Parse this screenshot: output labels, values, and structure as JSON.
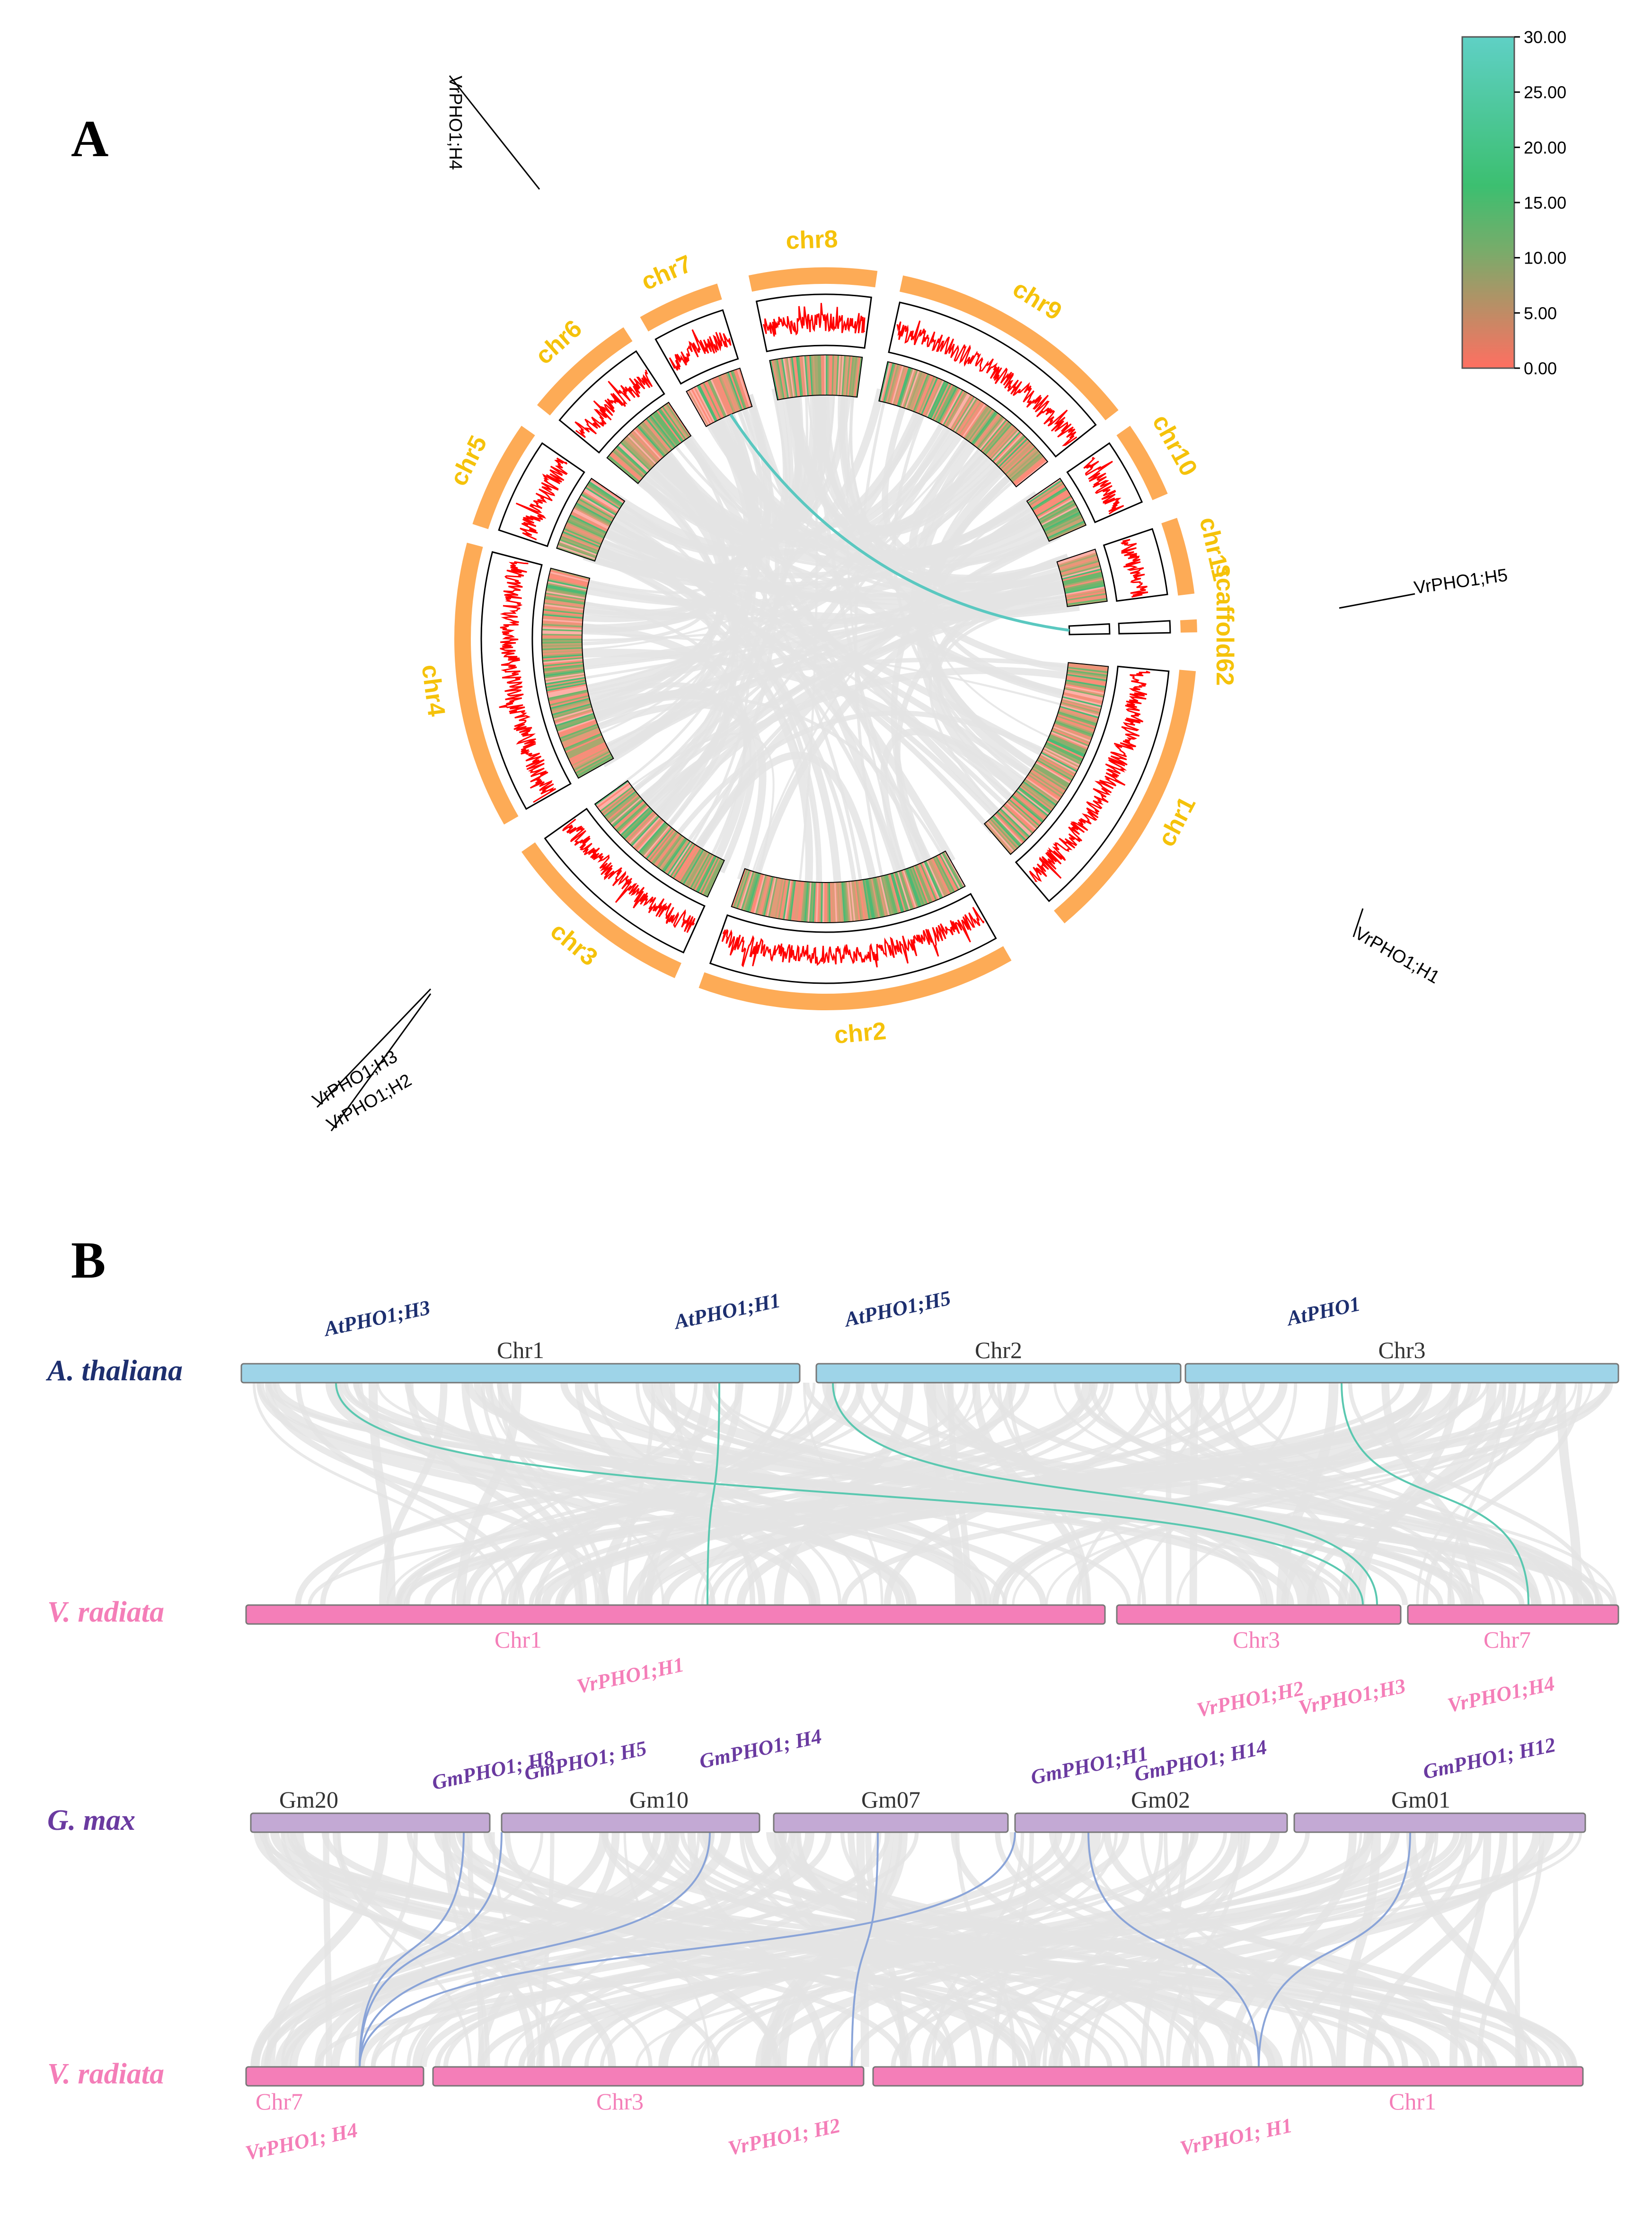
{
  "panel_a": {
    "letter": "A",
    "chromosomes": [
      {
        "id": "chr1",
        "label": "chr1"
      },
      {
        "id": "chr2",
        "label": "chr2"
      },
      {
        "id": "chr3",
        "label": "chr3"
      },
      {
        "id": "chr4",
        "label": "chr4"
      },
      {
        "id": "chr5",
        "label": "chr5"
      },
      {
        "id": "chr6",
        "label": "chr6"
      },
      {
        "id": "chr7",
        "label": "chr7"
      },
      {
        "id": "chr8",
        "label": "chr8"
      },
      {
        "id": "chr9",
        "label": "chr9"
      },
      {
        "id": "chr10",
        "label": "chr10"
      },
      {
        "id": "chr11",
        "label": "chr11"
      },
      {
        "id": "scaffold62",
        "label": "scaffold62"
      }
    ],
    "genes": [
      {
        "label": "VrPHO1;H1",
        "chr": "chr1"
      },
      {
        "label": "VrPHO1;H2",
        "chr": "chr3"
      },
      {
        "label": "VrPHO1;H3",
        "chr": "chr3"
      },
      {
        "label": "VrPHO1;H4",
        "chr": "chr7"
      },
      {
        "label": "VrPHO1;H5",
        "chr": "scaffold62"
      }
    ],
    "highlight_link": {
      "from": "VrPHO1;H4",
      "to": "VrPHO1;H5"
    },
    "legend": {
      "ticks": [
        "30.00",
        "25.00",
        "20.00",
        "15.00",
        "10.00",
        "5.00",
        "0.00"
      ],
      "gradient_colors": [
        "#5fd0c5",
        "#3cbf70",
        "#7aab6a",
        "#ff6f61"
      ]
    },
    "colors": {
      "chrom_band": "#fdab56",
      "chr_label": "#f5c20a",
      "density_line": "#ff0000",
      "highlight_link": "#5ac8c0",
      "background_links": "#e4e4e4"
    }
  },
  "panel_b": {
    "letter": "B",
    "athal_vrad": {
      "top_species": "A. thaliana",
      "bottom_species": "V. radiata",
      "top_chromosomes": [
        {
          "label": "Chr1"
        },
        {
          "label": "Chr2"
        },
        {
          "label": "Chr3"
        }
      ],
      "bottom_chromosomes": [
        {
          "label": "Chr1"
        },
        {
          "label": "Chr3"
        },
        {
          "label": "Chr7"
        }
      ],
      "top_genes": [
        "AtPHO1;H3",
        "AtPHO1;H1",
        "AtPHO1;H5",
        "AtPHO1"
      ],
      "bottom_genes": [
        "VrPHO1;H1",
        "VrPHO1;H2",
        "VrPHO1;H3",
        "VrPHO1;H4"
      ]
    },
    "gmax_vrad": {
      "top_species": "G. max",
      "bottom_species": "V. radiata",
      "top_chromosomes": [
        {
          "label": "Gm20"
        },
        {
          "label": "Gm10"
        },
        {
          "label": "Gm07"
        },
        {
          "label": "Gm02"
        },
        {
          "label": "Gm01"
        }
      ],
      "bottom_chromosomes": [
        {
          "label": "Chr7"
        },
        {
          "label": "Chr3"
        },
        {
          "label": "Chr1"
        }
      ],
      "top_genes": [
        "GmPHO1; H8",
        "GmPHO1; H5",
        "GmPHO1; H4",
        "GmPHO1;H1",
        "GmPHO1; H14",
        "GmPHO1; H12"
      ],
      "bottom_genes": [
        "VrPHO1; H4",
        "VrPHO1; H2",
        "VrPHO1; H1"
      ]
    },
    "colors": {
      "athal_color": "#1d2f6f",
      "athal_bar": "#9ed4e8",
      "vrad_color": "#f47eb8",
      "vrad_bar": "#f47eb8",
      "gmax_color": "#6a3aa0",
      "gmax_bar": "#c3a9d4",
      "athal_link": "#5ac8b0",
      "gmax_link": "#8aa4d8",
      "background_links": "#e4e4e4"
    }
  }
}
